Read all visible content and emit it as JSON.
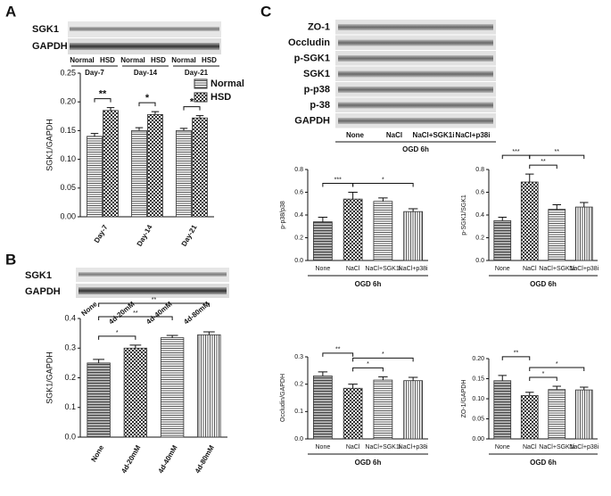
{
  "panels": [
    "A",
    "B",
    "C"
  ],
  "blots": {
    "A": {
      "rows": [
        "SGK1",
        "GAPDH"
      ],
      "lanes": [
        "Normal",
        "HSD",
        "Normal",
        "HSD",
        "Normal",
        "HSD"
      ],
      "groups": [
        "Day-7",
        "Day-14",
        "Day-21"
      ]
    },
    "B": {
      "rows": [
        "SGK1",
        "GAPDH"
      ],
      "lanes": [
        "None",
        "4d-20mM",
        "4d-40mM",
        "4d-80mM"
      ]
    },
    "C": {
      "rows": [
        "ZO-1",
        "Occludin",
        "p-SGK1",
        "SGK1",
        "p-p38",
        "p-38",
        "GAPDH"
      ],
      "lanes": [
        "None",
        "NaCl",
        "NaCl+SGK1i",
        "NaCl+p38i"
      ],
      "condition": "OGD 6h"
    }
  },
  "chart_data": [
    {
      "type": "bar",
      "ylabel": "SGK1/GAPDH",
      "categories": [
        "Day-7",
        "Day-14",
        "Day-21"
      ],
      "series": [
        {
          "name": "Normal",
          "color": "#777777",
          "values": [
            0.14,
            0.15,
            0.15
          ],
          "errors": [
            0.005,
            0.005,
            0.004
          ]
        },
        {
          "name": "HSD",
          "color": "#777777",
          "values": [
            0.185,
            0.178,
            0.172
          ],
          "errors": [
            0.005,
            0.005,
            0.004
          ]
        }
      ],
      "ylim": [
        0,
        0.25
      ],
      "yticks": [
        {
          "value": 0,
          "label": "0.00"
        },
        0.05,
        {
          "value": 0.1,
          "label": "0.10"
        },
        0.15,
        {
          "value": 0.2,
          "label": "0.20"
        },
        0.25
      ],
      "annotations": [
        "**",
        "*",
        "*"
      ],
      "legend": "top-right"
    },
    {
      "type": "bar",
      "ylabel": "SGK1/GAPDH",
      "categories": [
        "None",
        "4d-20mM",
        "4d-40mM",
        "4d-80mM"
      ],
      "values": [
        0.25,
        0.3,
        0.335,
        0.345
      ],
      "errors": [
        0.012,
        0.01,
        0.008,
        0.01
      ],
      "color": "#777777",
      "ylim": [
        0,
        0.4
      ],
      "yticks": [
        {
          "value": 0,
          "label": "0.0"
        },
        0.1,
        0.2,
        0.3,
        0.4
      ],
      "annotations": [
        "*",
        "**",
        "**"
      ]
    },
    {
      "type": "bar",
      "ylabel": "p-p38/p38",
      "xlabel": "OGD 6h",
      "categories": [
        "None",
        "NaCl",
        "NaCl+SGK1i",
        "NaCl+p38i"
      ],
      "values": [
        0.34,
        0.54,
        0.52,
        0.43
      ],
      "errors": [
        0.04,
        0.06,
        0.03,
        0.025
      ],
      "color": "#777777",
      "ylim": [
        0,
        0.8
      ],
      "yticks": [
        {
          "value": 0,
          "label": "0.0"
        },
        0.2,
        0.4,
        0.6,
        0.8
      ],
      "annotations": [
        "***",
        "*"
      ]
    },
    {
      "type": "bar",
      "ylabel": "p-SGK1/SGK1",
      "xlabel": "OGD 6h",
      "categories": [
        "None",
        "NaCl",
        "NaCl+SGK1i",
        "NaCl+p38i"
      ],
      "values": [
        0.35,
        0.69,
        0.45,
        0.47
      ],
      "errors": [
        0.03,
        0.07,
        0.04,
        0.04
      ],
      "color": "#777777",
      "ylim": [
        0,
        0.8
      ],
      "yticks": [
        {
          "value": 0,
          "label": "0.0"
        },
        0.2,
        0.4,
        0.6,
        0.8
      ],
      "annotations": [
        "***",
        "**",
        "**"
      ]
    },
    {
      "type": "bar",
      "ylabel": "Occludin/GAPDH",
      "xlabel": "OGD 6h",
      "categories": [
        "None",
        "NaCl",
        "NaCl+SGK1i",
        "NaCl+p38i"
      ],
      "values": [
        0.23,
        0.185,
        0.215,
        0.213
      ],
      "errors": [
        0.015,
        0.015,
        0.012,
        0.012
      ],
      "color": "#777777",
      "ylim": [
        0,
        0.3
      ],
      "yticks": [
        {
          "value": 0,
          "label": "0.0"
        },
        0.1,
        0.2,
        0.3
      ],
      "annotations": [
        "**",
        "*",
        "*"
      ]
    },
    {
      "type": "bar",
      "ylabel": "ZO-1/GAPDH",
      "xlabel": "OGD 6h",
      "categories": [
        "None",
        "NaCl",
        "NaCl+SGK1i",
        "NaCl+p38i"
      ],
      "values": [
        0.145,
        0.108,
        0.123,
        0.122
      ],
      "errors": [
        0.013,
        0.008,
        0.008,
        0.007
      ],
      "color": "#777777",
      "ylim": [
        0,
        0.2
      ],
      "yticks": [
        {
          "value": 0,
          "label": "0.00"
        },
        0.05,
        {
          "value": 0.1,
          "label": "0.10"
        },
        0.15,
        {
          "value": 0.2,
          "label": "0.20"
        }
      ],
      "annotations": [
        "**",
        "*",
        "*"
      ]
    }
  ]
}
